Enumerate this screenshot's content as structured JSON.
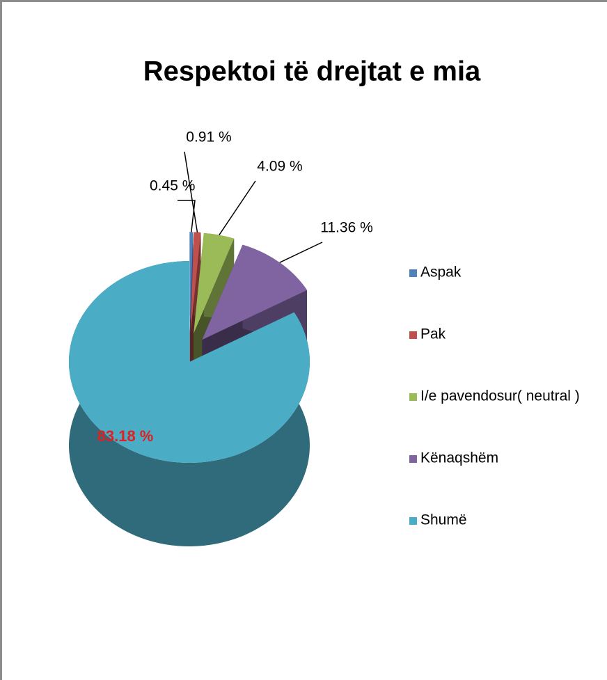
{
  "chart_data": {
    "type": "pie",
    "title": "Respektoi të drejtat e mia",
    "categories": [
      "Aspak",
      "Pak",
      "I/e pavendosur( neutral )",
      "Kënaqshëm",
      "Shumë"
    ],
    "values": [
      0.45,
      0.91,
      4.09,
      11.36,
      83.18
    ],
    "value_labels": [
      "0.45 %",
      "0.91 %",
      "4.09 %",
      "11.36 %",
      "83.18 %"
    ],
    "colors": [
      "#4f81bd",
      "#c0504d",
      "#9bbb59",
      "#8064a2",
      "#4bacc6"
    ],
    "legend": "right"
  }
}
